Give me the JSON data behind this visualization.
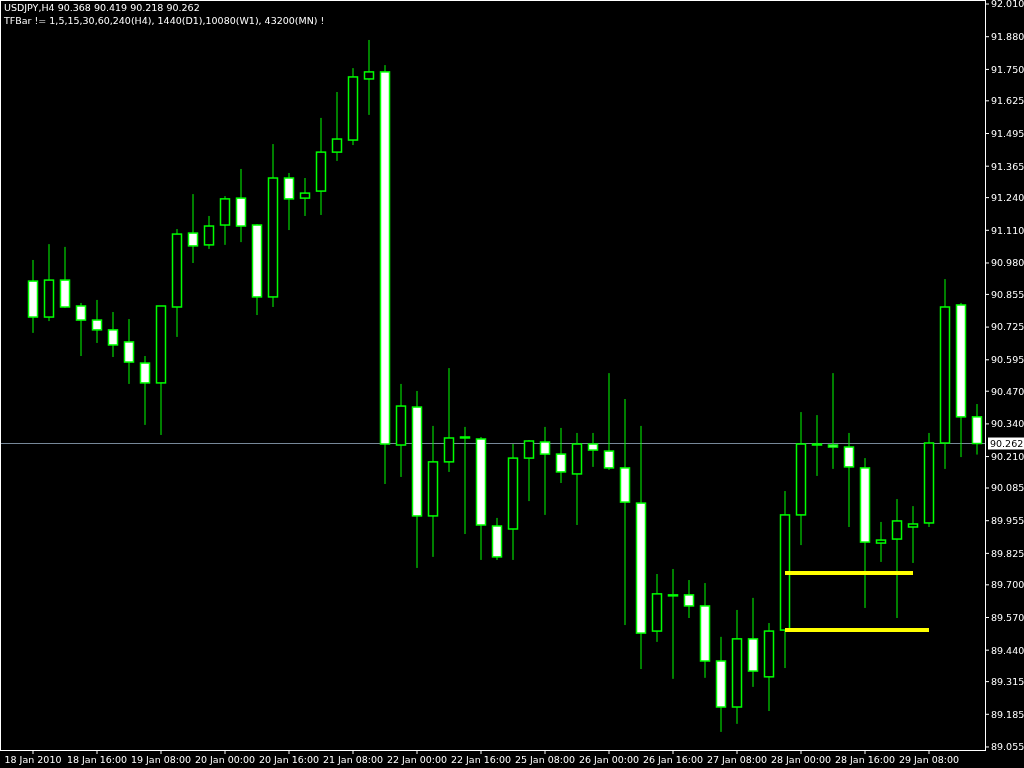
{
  "chart_data": {
    "type": "candlestick",
    "title": "USDJPY,H4  90.368 90.419 90.218 90.262",
    "subtitle": "TFBar != 1,5,15,30,60,240(H4), 1440(D1),10080(W1), 43200(MN) !",
    "color": "#00ff00",
    "categories": [
      "18 Jan 2010",
      null,
      null,
      null,
      "18 Jan 16:00",
      null,
      null,
      null,
      "19 Jan 08:00",
      null,
      null,
      null,
      "20 Jan 00:00",
      null,
      null,
      null,
      "20 Jan 16:00",
      null,
      null,
      null,
      "21 Jan 08:00",
      null,
      null,
      null,
      "22 Jan 00:00",
      null,
      null,
      null,
      "22 Jan 16:00",
      null,
      null,
      null,
      "25 Jan 08:00",
      null,
      null,
      null,
      "26 Jan 00:00",
      null,
      null,
      null,
      "26 Jan 16:00",
      null,
      null,
      null,
      "27 Jan 08:00",
      null,
      null,
      null,
      "28 Jan 00:00",
      null,
      null,
      null,
      "28 Jan 16:00",
      null,
      null,
      null,
      "29 Jan 08:00",
      null,
      null,
      null
    ],
    "ohlc": [
      [
        90.908,
        90.992,
        90.702,
        90.765
      ],
      [
        90.765,
        91.055,
        90.749,
        90.912
      ],
      [
        90.912,
        91.044,
        90.801,
        90.805
      ],
      [
        90.809,
        90.821,
        90.61,
        90.753
      ],
      [
        90.753,
        90.833,
        90.662,
        90.714
      ],
      [
        90.714,
        90.785,
        90.606,
        90.654
      ],
      [
        90.666,
        90.757,
        90.499,
        90.586
      ],
      [
        90.582,
        90.61,
        90.336,
        90.503
      ],
      [
        90.503,
        90.809,
        90.296,
        90.809
      ],
      [
        90.805,
        91.115,
        90.686,
        91.095
      ],
      [
        91.099,
        91.254,
        90.98,
        91.048
      ],
      [
        91.052,
        91.167,
        91.036,
        91.127
      ],
      [
        91.131,
        91.246,
        91.052,
        91.235
      ],
      [
        91.238,
        91.354,
        91.063,
        91.127
      ],
      [
        91.131,
        91.135,
        90.773,
        90.845
      ],
      [
        90.845,
        91.453,
        90.805,
        91.318
      ],
      [
        91.318,
        91.338,
        91.111,
        91.235
      ],
      [
        91.238,
        91.318,
        91.167,
        91.258
      ],
      [
        91.266,
        91.557,
        91.171,
        91.421
      ],
      [
        91.421,
        91.66,
        91.386,
        91.473
      ],
      [
        91.469,
        91.755,
        91.449,
        91.72
      ],
      [
        91.712,
        91.867,
        91.569,
        91.74
      ],
      [
        91.74,
        91.767,
        90.101,
        90.26
      ],
      [
        90.256,
        90.499,
        90.129,
        90.411
      ],
      [
        90.407,
        90.471,
        89.767,
        89.974
      ],
      [
        89.974,
        90.332,
        89.811,
        90.189
      ],
      [
        90.189,
        90.562,
        90.149,
        90.284
      ],
      [
        90.288,
        90.328,
        89.902,
        90.284
      ],
      [
        90.28,
        90.288,
        89.799,
        89.938
      ],
      [
        89.934,
        89.966,
        89.799,
        89.811
      ],
      [
        89.922,
        90.26,
        89.799,
        90.204
      ],
      [
        90.204,
        90.276,
        90.033,
        90.272
      ],
      [
        90.268,
        90.328,
        89.978,
        90.22
      ],
      [
        90.22,
        90.324,
        90.105,
        90.149
      ],
      [
        90.141,
        90.304,
        89.938,
        90.26
      ],
      [
        90.26,
        90.304,
        90.169,
        90.236
      ],
      [
        90.232,
        90.542,
        90.157,
        90.165
      ],
      [
        90.165,
        90.439,
        89.54,
        90.029
      ],
      [
        90.025,
        90.332,
        89.365,
        89.508
      ],
      [
        89.516,
        89.743,
        89.473,
        89.664
      ],
      [
        89.66,
        89.763,
        89.326,
        89.66
      ],
      [
        89.66,
        89.719,
        89.568,
        89.616
      ],
      [
        89.616,
        89.707,
        89.33,
        89.397
      ],
      [
        89.397,
        89.493,
        89.115,
        89.214
      ],
      [
        89.214,
        89.6,
        89.147,
        89.485
      ],
      [
        89.485,
        89.648,
        89.294,
        89.357
      ],
      [
        89.334,
        89.548,
        89.198,
        89.516
      ],
      [
        89.52,
        90.073,
        89.369,
        89.978
      ],
      [
        89.978,
        90.387,
        89.858,
        90.26
      ],
      [
        90.26,
        90.375,
        90.133,
        90.256
      ],
      [
        90.256,
        90.542,
        90.161,
        90.248
      ],
      [
        90.248,
        90.304,
        89.93,
        90.169
      ],
      [
        90.165,
        90.204,
        89.608,
        89.87
      ],
      [
        89.866,
        89.95,
        89.791,
        89.878
      ],
      [
        89.882,
        90.041,
        89.568,
        89.954
      ],
      [
        89.93,
        90.013,
        89.787,
        89.942
      ],
      [
        89.946,
        90.304,
        89.93,
        90.264
      ],
      [
        90.264,
        90.916,
        90.161,
        90.805
      ],
      [
        90.813,
        90.821,
        90.208,
        90.368
      ],
      [
        90.368,
        90.419,
        90.218,
        90.262
      ]
    ],
    "series": [
      {
        "type": "line",
        "color": "#ffff00",
        "values": [
          null,
          null,
          null,
          null,
          null,
          null,
          null,
          null,
          null,
          null,
          null,
          null,
          null,
          null,
          null,
          null,
          null,
          null,
          null,
          null,
          null,
          null,
          null,
          null,
          null,
          null,
          null,
          null,
          null,
          null,
          null,
          null,
          null,
          null,
          null,
          null,
          null,
          null,
          null,
          null,
          null,
          null,
          null,
          null,
          null,
          null,
          null,
          89.747,
          89.747,
          89.747,
          89.747,
          89.747,
          89.747,
          89.747,
          89.747,
          89.747,
          null,
          null,
          null,
          null
        ]
      },
      {
        "type": "line",
        "color": "#ffff00",
        "values": [
          null,
          null,
          null,
          null,
          null,
          null,
          null,
          null,
          null,
          null,
          null,
          null,
          null,
          null,
          null,
          null,
          null,
          null,
          null,
          null,
          null,
          null,
          null,
          null,
          null,
          null,
          null,
          null,
          null,
          null,
          null,
          null,
          null,
          null,
          null,
          null,
          null,
          null,
          null,
          null,
          null,
          null,
          null,
          null,
          null,
          null,
          null,
          89.52,
          89.52,
          89.52,
          89.52,
          89.52,
          89.52,
          89.52,
          89.52,
          89.52,
          89.52,
          null,
          null,
          null
        ]
      }
    ],
    "ref_lines": [
      {
        "axis": "y",
        "value": 90.262,
        "label": "90.262",
        "color": "#778899"
      }
    ],
    "ylim": [
      89.043,
      92.026
    ],
    "yticks": [
      {
        "value": 92.01,
        "label": "92.010"
      },
      {
        "value": 91.88,
        "label": "91.880"
      },
      {
        "value": 91.75,
        "label": "91.750"
      },
      {
        "value": 91.625,
        "label": "91.625"
      },
      {
        "value": 91.495,
        "label": "91.495"
      },
      {
        "value": 91.365,
        "label": "91.365"
      },
      {
        "value": 91.24,
        "label": "91.240"
      },
      {
        "value": 91.11,
        "label": "91.110"
      },
      {
        "value": 90.98,
        "label": "90.980"
      },
      {
        "value": 90.855,
        "label": "90.855"
      },
      {
        "value": 90.725,
        "label": "90.725"
      },
      {
        "value": 90.595,
        "label": "90.595"
      },
      {
        "value": 90.47,
        "label": "90.470"
      },
      {
        "value": 90.34,
        "label": "90.340"
      },
      {
        "value": 90.21,
        "label": "90.210"
      },
      {
        "value": 90.085,
        "label": "90.085"
      },
      {
        "value": 89.955,
        "label": "89.955"
      },
      {
        "value": 89.825,
        "label": "89.825"
      },
      {
        "value": 89.7,
        "label": "89.700"
      },
      {
        "value": 89.57,
        "label": "89.570"
      },
      {
        "value": 89.44,
        "label": "89.440"
      },
      {
        "value": 89.315,
        "label": "89.315"
      },
      {
        "value": 89.185,
        "label": "89.185"
      },
      {
        "value": 89.055,
        "label": "89.055"
      }
    ],
    "grid": false
  }
}
